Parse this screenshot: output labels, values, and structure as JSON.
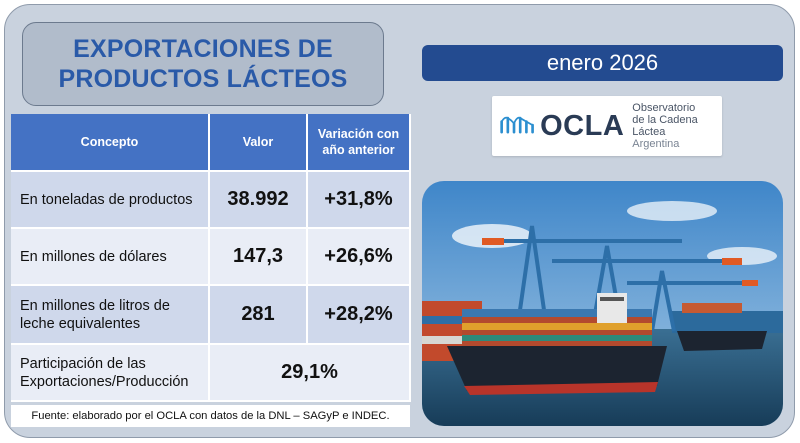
{
  "title": "EXPORTACIONES DE\nPRODUCTOS LÁCTEOS",
  "date": "enero 2026",
  "logo": {
    "name": "OCLA",
    "line1": "Observatorio",
    "line2": "de la Cadena Láctea",
    "line3": "Argentina",
    "accent_color": "#2c8fd0"
  },
  "table": {
    "headers": [
      "Concepto",
      "Valor",
      "Variación con año anterior"
    ],
    "rows": [
      {
        "concept": "En toneladas de productos",
        "value": "38.992",
        "change": "+31,8%"
      },
      {
        "concept": "En millones de dólares",
        "value": "147,3",
        "change": "+26,6%"
      },
      {
        "concept": "En millones de litros de leche equivalentes",
        "value": "281",
        "change": "+28,2%"
      },
      {
        "concept": "Participación de las Exportaciones/Producción",
        "value": "29,1%"
      }
    ]
  },
  "source": "Fuente: elaborado por el OCLA con datos de la DNL – SAGyP e INDEC.",
  "colors": {
    "title_text": "#2a5aa8",
    "header_bg": "#4472c4",
    "date_bg": "#234b90",
    "row_dark": "#cfd8eb",
    "row_light": "#e9edf6",
    "card_bg": "#c9d2de"
  }
}
